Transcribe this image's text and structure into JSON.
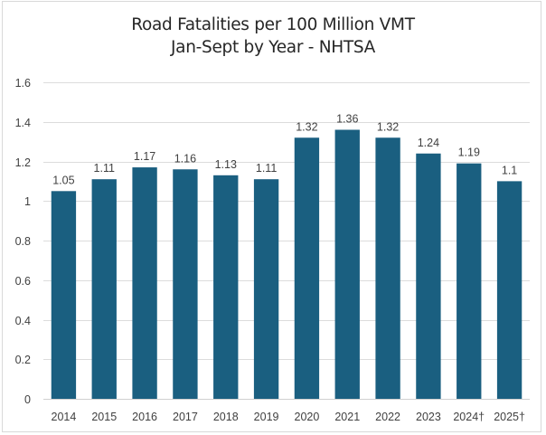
{
  "chart_data": {
    "type": "bar",
    "title": "Road Fatalities per 100 Million VMT",
    "subtitle": "Jan-Sept by Year - NHTSA",
    "xlabel": "",
    "ylabel": "",
    "categories": [
      "2014",
      "2015",
      "2016",
      "2017",
      "2018",
      "2019",
      "2020",
      "2021",
      "2022",
      "2023",
      "2024†",
      "2025†"
    ],
    "values": [
      1.05,
      1.11,
      1.17,
      1.16,
      1.13,
      1.11,
      1.32,
      1.36,
      1.32,
      1.24,
      1.19,
      1.1
    ],
    "data_labels": [
      "1.05",
      "1.11",
      "1.17",
      "1.16",
      "1.13",
      "1.11",
      "1.32",
      "1.36",
      "1.32",
      "1.24",
      "1.19",
      "1.1"
    ],
    "ylim": [
      0,
      1.6
    ],
    "yticks": [
      0,
      0.2,
      0.4,
      0.6,
      0.8,
      1,
      1.2,
      1.4,
      1.6
    ],
    "ytick_labels": [
      "0",
      "0.2",
      "0.4",
      "0.6",
      "0.8",
      "1",
      "1.2",
      "1.4",
      "1.6"
    ],
    "grid": true,
    "legend": "none",
    "bar_color": "#1a5f80"
  }
}
